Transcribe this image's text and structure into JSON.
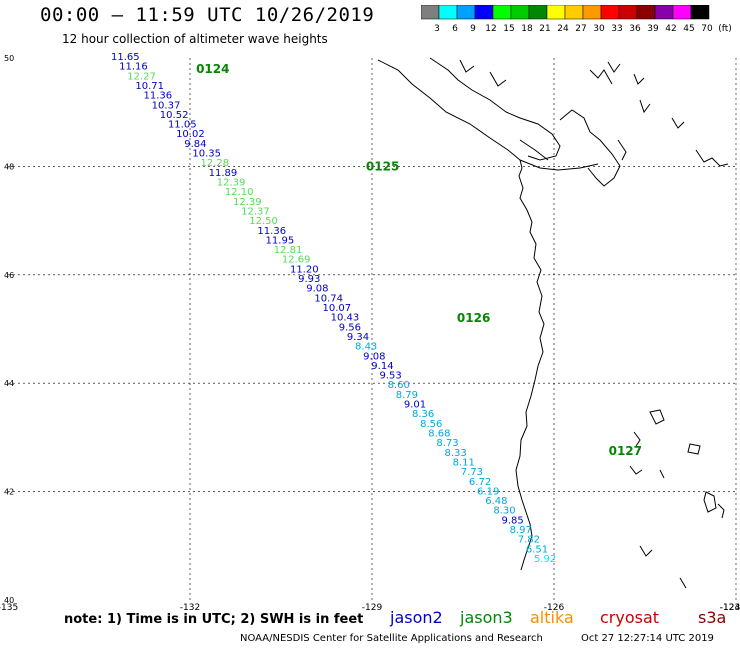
{
  "title": "00:00 – 11:59 UTC 10/26/2019",
  "subtitle": "12 hour collection of altimeter wave heights",
  "colorbar": {
    "labels": [
      "3",
      "6",
      "9",
      "12",
      "15",
      "18",
      "21",
      "24",
      "27",
      "30",
      "33",
      "36",
      "39",
      "42",
      "45",
      "70",
      "(ft)"
    ],
    "colors": [
      "#7f7f7f",
      "#00ffff",
      "#00a0ff",
      "#0000ff",
      "#00ff00",
      "#00cc00",
      "#008800",
      "#ffff00",
      "#ffcc00",
      "#ff9900",
      "#ff0000",
      "#cc0000",
      "#880000",
      "#8800aa",
      "#ff00ff",
      "#000000"
    ]
  },
  "map": {
    "lon_range": [
      -135,
      -124
    ],
    "lat_range": [
      40,
      50
    ],
    "lon_ticks": [
      "-135",
      "-132",
      "-129",
      "-126",
      "-123",
      "-124"
    ],
    "lat_ticks": [
      "50",
      "48",
      "46",
      "44",
      "42",
      "40"
    ],
    "gridlines": true
  },
  "passes": [
    {
      "label": "0124",
      "lon": -131.9,
      "lat": 49.8
    },
    {
      "label": "0125",
      "lon": -129.1,
      "lat": 48.0
    },
    {
      "label": "0126",
      "lon": -127.6,
      "lat": 45.2
    },
    {
      "label": "0127",
      "lon": -125.1,
      "lat": 42.75
    }
  ],
  "swh": [
    {
      "v": "11.65",
      "c": "#0000cc"
    },
    {
      "v": "11.16",
      "c": "#0000cc"
    },
    {
      "v": "12.27",
      "c": "#55dd55"
    },
    {
      "v": "10.71",
      "c": "#0000cc"
    },
    {
      "v": "11.36",
      "c": "#0000cc"
    },
    {
      "v": "10.37",
      "c": "#0000cc"
    },
    {
      "v": "10.52",
      "c": "#0000cc"
    },
    {
      "v": "11.05",
      "c": "#0000cc"
    },
    {
      "v": "10.02",
      "c": "#0000cc"
    },
    {
      "v": "9.84",
      "c": "#0000cc"
    },
    {
      "v": "10.35",
      "c": "#0000cc"
    },
    {
      "v": "12.28",
      "c": "#55dd55"
    },
    {
      "v": "11.89",
      "c": "#0000cc"
    },
    {
      "v": "12.39",
      "c": "#55dd55"
    },
    {
      "v": "12.10",
      "c": "#55dd55"
    },
    {
      "v": "12.39",
      "c": "#55dd55"
    },
    {
      "v": "12.37",
      "c": "#55dd55"
    },
    {
      "v": "12.50",
      "c": "#55dd55"
    },
    {
      "v": "11.36",
      "c": "#0000cc"
    },
    {
      "v": "11.95",
      "c": "#0000cc"
    },
    {
      "v": "12.81",
      "c": "#55dd55"
    },
    {
      "v": "12.69",
      "c": "#55dd55"
    },
    {
      "v": "11.20",
      "c": "#0000cc"
    },
    {
      "v": "9.93",
      "c": "#0000cc"
    },
    {
      "v": "9.08",
      "c": "#0000cc"
    },
    {
      "v": "10.74",
      "c": "#0000cc"
    },
    {
      "v": "10.07",
      "c": "#0000cc"
    },
    {
      "v": "10.43",
      "c": "#0000cc"
    },
    {
      "v": "9.56",
      "c": "#0000cc"
    },
    {
      "v": "9.34",
      "c": "#0000cc"
    },
    {
      "v": "8.43",
      "c": "#00a8e0"
    },
    {
      "v": "9.08",
      "c": "#0000cc"
    },
    {
      "v": "9.14",
      "c": "#0000cc"
    },
    {
      "v": "9.53",
      "c": "#0000cc"
    },
    {
      "v": "8.60",
      "c": "#00a8e0"
    },
    {
      "v": "8.79",
      "c": "#00a8e0"
    },
    {
      "v": "9.01",
      "c": "#0000cc"
    },
    {
      "v": "8.36",
      "c": "#00a8e0"
    },
    {
      "v": "8.56",
      "c": "#00a8e0"
    },
    {
      "v": "8.68",
      "c": "#00a8e0"
    },
    {
      "v": "8.73",
      "c": "#00a8e0"
    },
    {
      "v": "8.33",
      "c": "#00a8e0"
    },
    {
      "v": "8.11",
      "c": "#00a8e0"
    },
    {
      "v": "7.73",
      "c": "#00a8e0"
    },
    {
      "v": "6.72",
      "c": "#00a8e0"
    },
    {
      "v": "6.19",
      "c": "#00a8e0"
    },
    {
      "v": "6.48",
      "c": "#00a8e0"
    },
    {
      "v": "8.30",
      "c": "#00a8e0"
    },
    {
      "v": "9.85",
      "c": "#0000cc"
    },
    {
      "v": "8.97",
      "c": "#00a8e0"
    },
    {
      "v": "7.82",
      "c": "#00a8e0"
    },
    {
      "v": "6.51",
      "c": "#00a8e0"
    },
    {
      "v": "5.92",
      "c": "#00e8ff"
    }
  ],
  "note": "note: 1) Time is in UTC; 2) SWH is in feet",
  "missions": [
    "jason2",
    "jason3",
    "altika",
    "cryosat",
    "s3a"
  ],
  "credit": "NOAA/NESDIS Center for Satellite Applications and Research",
  "timestamp": "Oct 27 12:27:14 UTC 2019"
}
